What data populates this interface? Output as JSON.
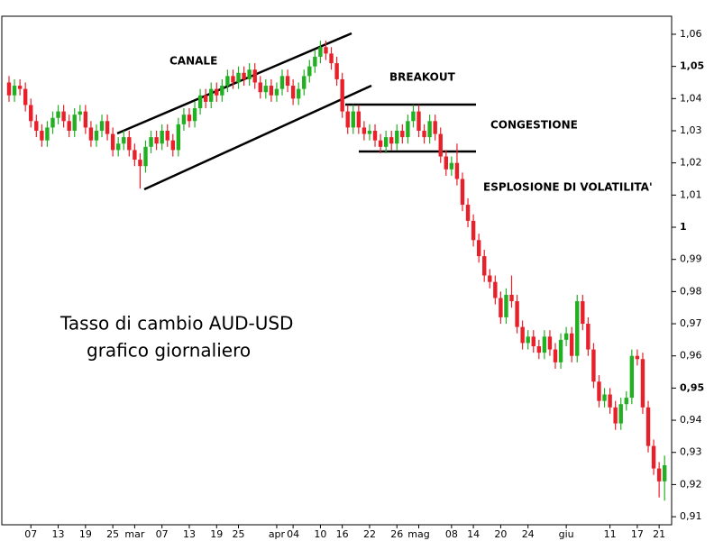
{
  "chart_data": {
    "type": "candlestick",
    "annotations": [
      "CANALE",
      "BREAKOUT",
      "CONGESTIONE",
      "ESPLOSIONE DI VOLATILITA'",
      "Tasso di cambio AUD-USD",
      "grafico giornaliero"
    ],
    "categories": [
      null,
      null,
      null,
      null,
      "07",
      null,
      null,
      null,
      null,
      "13",
      null,
      null,
      null,
      null,
      "19",
      null,
      null,
      null,
      null,
      "25",
      null,
      null,
      null,
      "mar",
      null,
      null,
      null,
      null,
      "07",
      null,
      null,
      null,
      null,
      "13",
      null,
      null,
      null,
      null,
      "19",
      null,
      null,
      null,
      "25",
      null,
      null,
      null,
      null,
      null,
      null,
      "apr",
      null,
      null,
      "04",
      null,
      null,
      null,
      null,
      "10",
      null,
      null,
      null,
      "16",
      null,
      null,
      null,
      null,
      "22",
      null,
      null,
      null,
      null,
      "26",
      null,
      null,
      null,
      "mag",
      null,
      null,
      null,
      null,
      null,
      "08",
      null,
      null,
      null,
      "14",
      null,
      null,
      null,
      null,
      "20",
      null,
      null,
      null,
      null,
      "24",
      null,
      null,
      null,
      null,
      null,
      null,
      "giu",
      null,
      null,
      null,
      null,
      null,
      null,
      null,
      "11",
      null,
      null,
      null,
      null,
      "17",
      null,
      null,
      null,
      "21",
      null
    ],
    "open": [
      1.045,
      1.041,
      1.044,
      1.043,
      1.038,
      1.033,
      1.03,
      1.027,
      1.031,
      1.034,
      1.036,
      1.033,
      1.03,
      1.035,
      1.036,
      1.031,
      1.027,
      1.03,
      1.033,
      1.029,
      1.024,
      1.026,
      1.028,
      1.024,
      1.021,
      1.019,
      1.025,
      1.028,
      1.026,
      1.03,
      1.027,
      1.024,
      1.032,
      1.035,
      1.033,
      1.037,
      1.041,
      1.039,
      1.043,
      1.041,
      1.044,
      1.047,
      1.045,
      1.048,
      1.046,
      1.049,
      1.045,
      1.042,
      1.044,
      1.041,
      1.043,
      1.047,
      1.044,
      1.04,
      1.043,
      1.047,
      1.05,
      1.053,
      1.056,
      1.054,
      1.051,
      1.046,
      1.036,
      1.031,
      1.036,
      1.031,
      1.029,
      1.03,
      1.027,
      1.025,
      1.028,
      1.026,
      1.03,
      1.028,
      1.033,
      1.036,
      1.03,
      1.028,
      1.033,
      1.029,
      1.022,
      1.018,
      1.02,
      1.015,
      1.007,
      1.002,
      0.996,
      0.991,
      0.985,
      0.983,
      0.978,
      0.972,
      0.979,
      0.977,
      0.969,
      0.964,
      0.966,
      0.963,
      0.961,
      0.966,
      0.962,
      0.958,
      0.965,
      0.967,
      0.96,
      0.977,
      0.97,
      0.962,
      0.952,
      0.946,
      0.948,
      0.944,
      0.939,
      0.945,
      0.947,
      0.96,
      0.959,
      0.944,
      0.932,
      0.925,
      0.921
    ],
    "high": [
      1.047,
      1.046,
      1.046,
      1.045,
      1.04,
      1.035,
      1.032,
      1.033,
      1.036,
      1.038,
      1.038,
      1.035,
      1.037,
      1.038,
      1.038,
      1.033,
      1.032,
      1.035,
      1.035,
      1.031,
      1.028,
      1.03,
      1.03,
      1.026,
      1.023,
      1.027,
      1.03,
      1.03,
      1.032,
      1.032,
      1.029,
      1.034,
      1.037,
      1.037,
      1.039,
      1.043,
      1.043,
      1.045,
      1.045,
      1.046,
      1.049,
      1.049,
      1.05,
      1.05,
      1.051,
      1.051,
      1.047,
      1.046,
      1.046,
      1.045,
      1.049,
      1.049,
      1.046,
      1.045,
      1.049,
      1.052,
      1.055,
      1.058,
      1.058,
      1.056,
      1.053,
      1.048,
      1.038,
      1.038,
      1.038,
      1.033,
      1.032,
      1.032,
      1.029,
      1.03,
      1.03,
      1.032,
      1.032,
      1.035,
      1.038,
      1.038,
      1.032,
      1.035,
      1.035,
      1.031,
      1.024,
      1.022,
      1.026,
      1.017,
      1.009,
      1.004,
      0.998,
      0.993,
      0.987,
      0.985,
      0.98,
      0.981,
      0.985,
      0.979,
      0.971,
      0.968,
      0.968,
      0.965,
      0.968,
      0.968,
      0.964,
      0.967,
      0.969,
      0.969,
      0.979,
      0.979,
      0.972,
      0.964,
      0.954,
      0.95,
      0.95,
      0.946,
      0.947,
      0.949,
      0.962,
      0.962,
      0.961,
      0.946,
      0.934,
      0.927,
      0.929
    ],
    "low": [
      1.039,
      1.039,
      1.041,
      1.036,
      1.031,
      1.028,
      1.025,
      1.025,
      1.029,
      1.032,
      1.031,
      1.028,
      1.028,
      1.033,
      1.029,
      1.025,
      1.025,
      1.028,
      1.027,
      1.022,
      1.022,
      1.024,
      1.022,
      1.019,
      1.012,
      1.017,
      1.023,
      1.024,
      1.024,
      1.025,
      1.022,
      1.022,
      1.03,
      1.031,
      1.031,
      1.035,
      1.037,
      1.037,
      1.039,
      1.039,
      1.042,
      1.043,
      1.043,
      1.044,
      1.044,
      1.043,
      1.04,
      1.04,
      1.039,
      1.039,
      1.041,
      1.042,
      1.038,
      1.038,
      1.041,
      1.045,
      1.048,
      1.051,
      1.052,
      1.049,
      1.044,
      1.034,
      1.029,
      1.029,
      1.029,
      1.027,
      1.027,
      1.025,
      1.023,
      1.023,
      1.024,
      1.024,
      1.026,
      1.026,
      1.031,
      1.028,
      1.026,
      1.026,
      1.027,
      1.02,
      1.016,
      1.016,
      1.013,
      1.005,
      1.0,
      0.994,
      0.989,
      0.983,
      0.981,
      0.976,
      0.97,
      0.97,
      0.975,
      0.967,
      0.962,
      0.962,
      0.961,
      0.959,
      0.959,
      0.96,
      0.956,
      0.956,
      0.963,
      0.958,
      0.958,
      0.968,
      0.96,
      0.95,
      0.944,
      0.944,
      0.942,
      0.937,
      0.937,
      0.943,
      0.945,
      0.957,
      0.942,
      0.93,
      0.923,
      0.916,
      0.915
    ],
    "close": [
      1.041,
      1.044,
      1.043,
      1.038,
      1.033,
      1.03,
      1.027,
      1.031,
      1.034,
      1.036,
      1.033,
      1.03,
      1.035,
      1.036,
      1.031,
      1.027,
      1.03,
      1.033,
      1.029,
      1.024,
      1.026,
      1.028,
      1.024,
      1.021,
      1.019,
      1.025,
      1.028,
      1.026,
      1.03,
      1.027,
      1.024,
      1.032,
      1.035,
      1.033,
      1.037,
      1.041,
      1.039,
      1.043,
      1.041,
      1.044,
      1.047,
      1.045,
      1.048,
      1.046,
      1.049,
      1.045,
      1.042,
      1.044,
      1.041,
      1.043,
      1.047,
      1.044,
      1.04,
      1.043,
      1.047,
      1.05,
      1.053,
      1.056,
      1.054,
      1.051,
      1.046,
      1.036,
      1.031,
      1.036,
      1.031,
      1.029,
      1.03,
      1.027,
      1.025,
      1.028,
      1.026,
      1.03,
      1.028,
      1.033,
      1.036,
      1.03,
      1.028,
      1.033,
      1.029,
      1.022,
      1.018,
      1.02,
      1.015,
      1.007,
      1.002,
      0.996,
      0.991,
      0.985,
      0.983,
      0.978,
      0.972,
      0.979,
      0.977,
      0.969,
      0.964,
      0.966,
      0.963,
      0.961,
      0.966,
      0.962,
      0.958,
      0.965,
      0.967,
      0.96,
      0.977,
      0.97,
      0.962,
      0.952,
      0.946,
      0.948,
      0.944,
      0.939,
      0.945,
      0.947,
      0.96,
      0.959,
      0.944,
      0.932,
      0.925,
      0.921,
      0.926
    ],
    "up_color": "#22b022",
    "down_color": "#e8202a",
    "ylim": [
      0.9075,
      1.0656
    ],
    "yticks": [
      {
        "value": 0.91,
        "label": "0,91"
      },
      {
        "value": 0.92,
        "label": "0,92"
      },
      {
        "value": 0.93,
        "label": "0,93"
      },
      {
        "value": 0.94,
        "label": "0,94"
      },
      {
        "value": 0.95,
        "label": "0,95"
      },
      {
        "value": 0.96,
        "label": "0,96"
      },
      {
        "value": 0.97,
        "label": "0,97"
      },
      {
        "value": 0.98,
        "label": "0,98"
      },
      {
        "value": 0.99,
        "label": "0,99"
      },
      1,
      {
        "value": 1.01,
        "label": "1,01"
      },
      {
        "value": 1.02,
        "label": "1,02"
      },
      {
        "value": 1.03,
        "label": "1,03"
      },
      {
        "value": 1.04,
        "label": "1,04"
      },
      {
        "value": 1.05,
        "label": "1,05"
      },
      {
        "value": 1.06,
        "label": "1,06"
      }
    ]
  }
}
